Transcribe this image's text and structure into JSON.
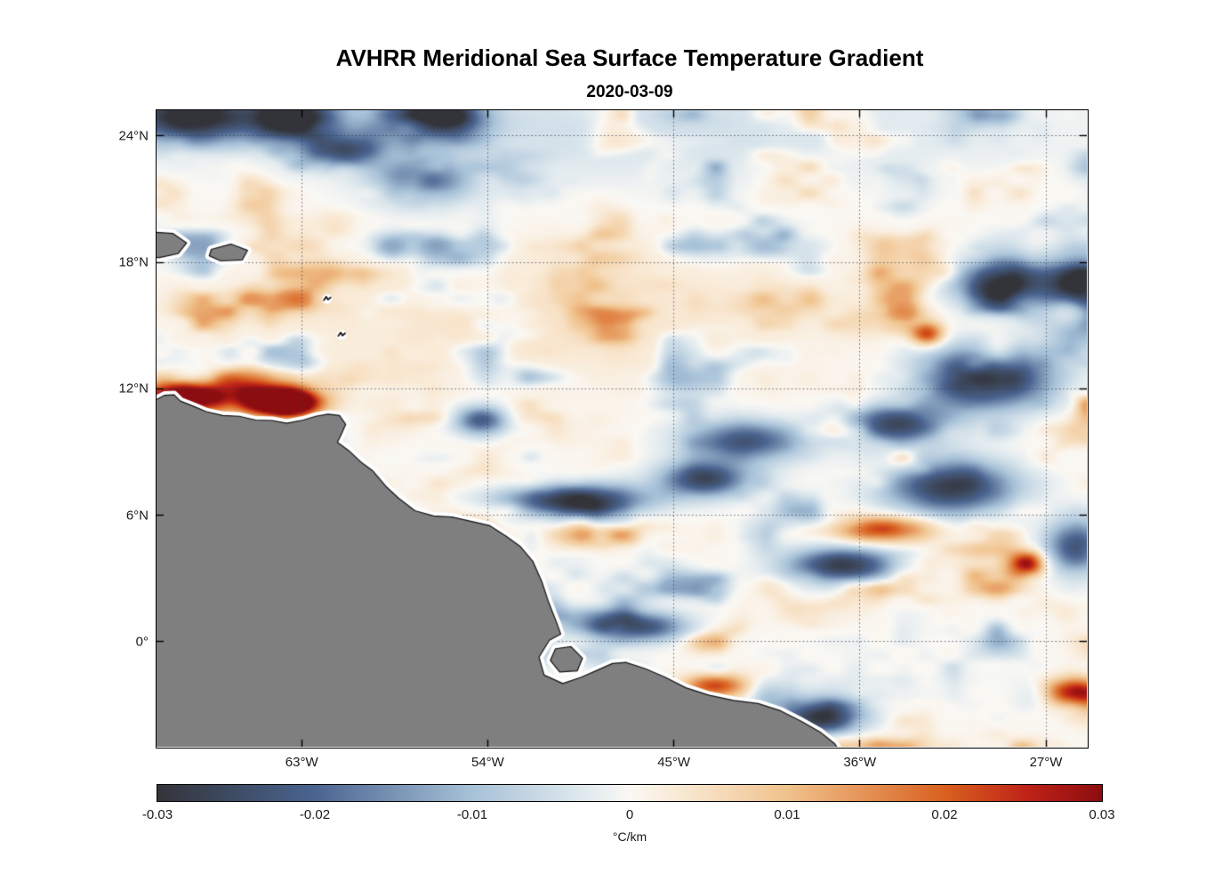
{
  "chart_data": {
    "type": "heatmap",
    "title": "AVHRR Meridional Sea Surface Temperature Gradient",
    "subtitle": "2020-03-09",
    "xlabel": "",
    "ylabel": "",
    "x_axis": {
      "min": -70,
      "max": -25,
      "ticks": [
        {
          "v": -63,
          "label": "63°W"
        },
        {
          "v": -54,
          "label": "54°W"
        },
        {
          "v": -45,
          "label": "45°W"
        },
        {
          "v": -36,
          "label": "36°W"
        },
        {
          "v": -27,
          "label": "27°W"
        }
      ]
    },
    "y_axis": {
      "min": -5,
      "max": 25.2,
      "ticks": [
        {
          "v": 24,
          "label": "24°N"
        },
        {
          "v": 18,
          "label": "18°N"
        },
        {
          "v": 12,
          "label": "12°N"
        },
        {
          "v": 6,
          "label": "6°N"
        },
        {
          "v": 0,
          "label": "0°"
        }
      ]
    },
    "grid": {
      "style": "dotted",
      "color": "#30364d"
    },
    "colorbar": {
      "label": "°C/km",
      "min": -0.03,
      "max": 0.03,
      "ticks": [
        {
          "v": -0.03,
          "label": "-0.03"
        },
        {
          "v": -0.02,
          "label": "-0.02"
        },
        {
          "v": -0.01,
          "label": "-0.01"
        },
        {
          "v": 0,
          "label": "0"
        },
        {
          "v": 0.01,
          "label": "0.01"
        },
        {
          "v": 0.02,
          "label": "0.02"
        },
        {
          "v": 0.03,
          "label": "0.03"
        }
      ],
      "stops": [
        [
          0.0,
          "#33343a"
        ],
        [
          0.167,
          "#4a6490"
        ],
        [
          0.333,
          "#a7c1d8"
        ],
        [
          0.45,
          "#dfe9ee"
        ],
        [
          0.5,
          "#faf8f4"
        ],
        [
          0.55,
          "#f9ead6"
        ],
        [
          0.667,
          "#f0c28c"
        ],
        [
          0.833,
          "#d9611f"
        ],
        [
          0.92,
          "#bf2318"
        ],
        [
          1.0,
          "#8c0d10"
        ]
      ]
    },
    "land_color": "#7f7f7f",
    "coast_halo_color": "#ffffff",
    "coast_line_color": "#111111",
    "field_units": "°C/km",
    "noise": {
      "seed": 11,
      "base": 0.0004,
      "softening": 0.012,
      "anisotropy": {
        "x": 0.62,
        "y": 1.12
      },
      "octaves": [
        {
          "wavelength_deg": 3.0,
          "amp": 0.01
        },
        {
          "wavelength_deg": 1.4,
          "amp": 0.0065
        },
        {
          "wavelength_deg": 0.7,
          "amp": 0.0032
        }
      ]
    },
    "notable_features": [
      {
        "lon": -63.8,
        "lat": 11.3,
        "slon": 1.1,
        "slat": 0.42,
        "amp": 0.052
      },
      {
        "lon": -65.9,
        "lat": 12.0,
        "slon": 2.2,
        "slat": 0.8,
        "amp": 0.026
      },
      {
        "lon": -68.9,
        "lat": 11.6,
        "slon": 1.5,
        "slat": 0.5,
        "amp": 0.028
      },
      {
        "lon": -68.3,
        "lat": 24.9,
        "slon": 2.2,
        "slat": 0.9,
        "amp": -0.034
      },
      {
        "lon": -63.4,
        "lat": 24.8,
        "slon": 1.4,
        "slat": 0.7,
        "amp": -0.028
      },
      {
        "lon": -56.2,
        "lat": 24.9,
        "slon": 1.4,
        "slat": 0.8,
        "amp": -0.028
      },
      {
        "lon": -57.2,
        "lat": 21.8,
        "slon": 1.6,
        "slat": 0.8,
        "amp": -0.02
      },
      {
        "lon": -60.9,
        "lat": 23.3,
        "slon": 1.2,
        "slat": 0.6,
        "amp": -0.022
      },
      {
        "lon": -47.0,
        "lat": 24.3,
        "slon": 14.0,
        "slat": 1.8,
        "amp": -0.005
      },
      {
        "lon": -29.0,
        "lat": 17.0,
        "slon": 1.7,
        "slat": 0.8,
        "amp": -0.028
      },
      {
        "lon": -25.4,
        "lat": 16.3,
        "slon": 1.1,
        "slat": 1.3,
        "amp": -0.032
      },
      {
        "lon": -29.9,
        "lat": 12.5,
        "slon": 2.2,
        "slat": 1.0,
        "amp": -0.034
      },
      {
        "lon": -34.2,
        "lat": 10.3,
        "slon": 1.8,
        "slat": 0.7,
        "amp": -0.026
      },
      {
        "lon": -41.5,
        "lat": 9.5,
        "slon": 2.0,
        "slat": 0.7,
        "amp": -0.022
      },
      {
        "lon": -43.5,
        "lat": 7.7,
        "slon": 1.5,
        "slat": 0.6,
        "amp": -0.026
      },
      {
        "lon": -31.6,
        "lat": 7.3,
        "slon": 2.2,
        "slat": 0.9,
        "amp": -0.028
      },
      {
        "lon": -49.8,
        "lat": 6.7,
        "slon": 2.4,
        "slat": 0.55,
        "amp": -0.03
      },
      {
        "lon": -36.8,
        "lat": 3.6,
        "slon": 1.9,
        "slat": 0.6,
        "amp": -0.028
      },
      {
        "lon": -46.6,
        "lat": 0.7,
        "slon": 1.6,
        "slat": 0.5,
        "amp": -0.024
      },
      {
        "lon": -37.8,
        "lat": -3.6,
        "slon": 1.4,
        "slat": 0.6,
        "amp": -0.03
      },
      {
        "lon": -25.5,
        "lat": 4.5,
        "slon": 1.0,
        "slat": 0.9,
        "amp": -0.024
      },
      {
        "lon": -54.3,
        "lat": 10.5,
        "slon": 0.9,
        "slat": 0.5,
        "amp": -0.022
      },
      {
        "lon": -34.8,
        "lat": 5.3,
        "slon": 1.6,
        "slat": 0.45,
        "amp": 0.024
      },
      {
        "lon": -27.9,
        "lat": 3.7,
        "slon": 0.65,
        "slat": 0.4,
        "amp": 0.03
      },
      {
        "lon": -48.3,
        "lat": 5.1,
        "slon": 1.6,
        "slat": 0.5,
        "amp": 0.02
      },
      {
        "lon": -25.7,
        "lat": -2.4,
        "slon": 0.9,
        "slat": 0.45,
        "amp": 0.026
      },
      {
        "lon": -43.0,
        "lat": -2.1,
        "slon": 1.1,
        "slat": 0.4,
        "amp": 0.022
      },
      {
        "lon": -32.7,
        "lat": 14.6,
        "slon": 0.55,
        "slat": 0.4,
        "amp": 0.022
      },
      {
        "lon": -25.8,
        "lat": 15.6,
        "slon": 0.7,
        "slat": 0.55,
        "amp": 0.024
      },
      {
        "lon": -51.5,
        "lat": 15.5,
        "slon": 10.0,
        "slat": 2.2,
        "amp": 0.004
      }
    ],
    "land_polygons": {
      "mainland": [
        [
          -71,
          11.2
        ],
        [
          -70.05,
          11.45
        ],
        [
          -69.6,
          11.68
        ],
        [
          -69.15,
          11.7
        ],
        [
          -68.85,
          11.4
        ],
        [
          -68.2,
          11.15
        ],
        [
          -67.6,
          10.9
        ],
        [
          -66.8,
          10.72
        ],
        [
          -66.0,
          10.68
        ],
        [
          -65.2,
          10.5
        ],
        [
          -64.4,
          10.48
        ],
        [
          -63.7,
          10.35
        ],
        [
          -62.9,
          10.5
        ],
        [
          -62.3,
          10.68
        ],
        [
          -61.7,
          10.78
        ],
        [
          -61.15,
          10.72
        ],
        [
          -60.85,
          10.3
        ],
        [
          -61.05,
          9.85
        ],
        [
          -61.25,
          9.45
        ],
        [
          -60.7,
          9.05
        ],
        [
          -60.1,
          8.5
        ],
        [
          -59.55,
          8.1
        ],
        [
          -58.9,
          7.35
        ],
        [
          -58.3,
          6.8
        ],
        [
          -57.5,
          6.2
        ],
        [
          -56.6,
          5.95
        ],
        [
          -55.7,
          5.9
        ],
        [
          -54.8,
          5.7
        ],
        [
          -53.9,
          5.5
        ],
        [
          -53.1,
          5.0
        ],
        [
          -52.4,
          4.5
        ],
        [
          -51.8,
          3.8
        ],
        [
          -51.35,
          2.8
        ],
        [
          -51.05,
          1.9
        ],
        [
          -50.65,
          0.9
        ],
        [
          -50.45,
          0.35
        ],
        [
          -51.0,
          0.05
        ],
        [
          -51.5,
          -0.75
        ],
        [
          -51.25,
          -1.6
        ],
        [
          -50.35,
          -2.0
        ],
        [
          -49.45,
          -1.7
        ],
        [
          -48.75,
          -1.4
        ],
        [
          -47.95,
          -1.05
        ],
        [
          -47.3,
          -1.0
        ],
        [
          -46.35,
          -1.3
        ],
        [
          -45.4,
          -1.7
        ],
        [
          -44.4,
          -2.2
        ],
        [
          -43.3,
          -2.55
        ],
        [
          -42.1,
          -2.8
        ],
        [
          -40.9,
          -2.95
        ],
        [
          -39.8,
          -3.3
        ],
        [
          -38.8,
          -3.8
        ],
        [
          -37.9,
          -4.3
        ],
        [
          -37.2,
          -4.85
        ],
        [
          -36.9,
          -5.3
        ],
        [
          -36.8,
          -6.0
        ],
        [
          -71,
          -6.0
        ]
      ],
      "marajo": [
        [
          -50.7,
          -0.35
        ],
        [
          -49.95,
          -0.25
        ],
        [
          -49.4,
          -0.8
        ],
        [
          -49.65,
          -1.4
        ],
        [
          -50.5,
          -1.45
        ],
        [
          -50.95,
          -0.9
        ]
      ],
      "hispaniola": [
        [
          -70.6,
          19.45
        ],
        [
          -69.2,
          19.35
        ],
        [
          -68.55,
          18.9
        ],
        [
          -68.95,
          18.4
        ],
        [
          -69.9,
          18.2
        ],
        [
          -70.6,
          18.35
        ]
      ],
      "puerto_rico": [
        [
          -67.35,
          18.6
        ],
        [
          -66.4,
          18.85
        ],
        [
          -65.6,
          18.55
        ],
        [
          -65.85,
          18.1
        ],
        [
          -66.9,
          18.05
        ],
        [
          -67.45,
          18.3
        ]
      ]
    },
    "small_islands": [
      {
        "lon": -61.75,
        "lat": 16.25
      },
      {
        "lon": -61.05,
        "lat": 14.55
      }
    ]
  }
}
